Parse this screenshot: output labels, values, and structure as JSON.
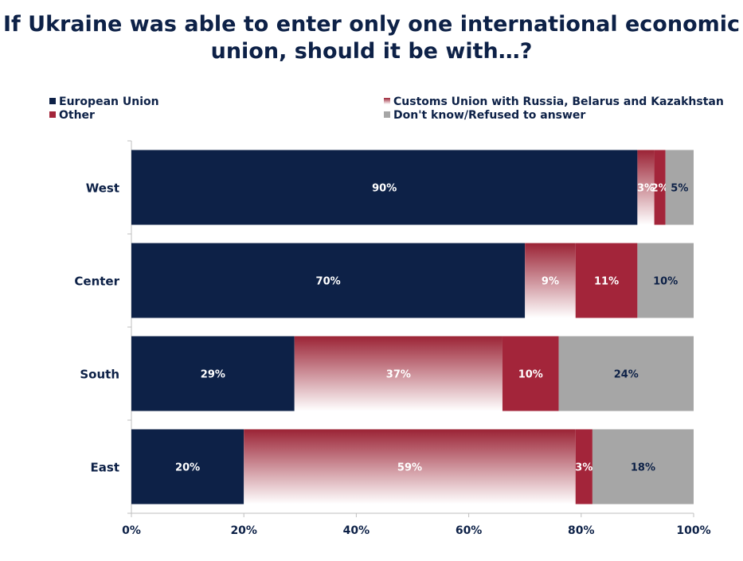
{
  "title_lines": [
    "If Ukraine was able to enter only one international economic",
    "union, should it be with…?"
  ],
  "colors": {
    "eu": "#0d2147",
    "cu_top": "#9b2335",
    "cu_bottom": "#ffffff",
    "other": "#a3253a",
    "dk": "#a6a6a6",
    "axis_text": "#0d2147"
  },
  "legend": [
    {
      "label": "European Union",
      "color": "#0d2147"
    },
    {
      "label": "Customs Union with Russia, Belarus and Kazakhstan",
      "color": "gradient"
    },
    {
      "label": "Other",
      "color": "#a3253a"
    },
    {
      "label": "Don't know/Refused to answer",
      "color": "#a6a6a6"
    }
  ],
  "chart_data": {
    "type": "bar",
    "orientation": "horizontal",
    "stacked": true,
    "title": "If Ukraine was able to enter only one international economic union, should it be with…?",
    "categories": [
      "West",
      "Center",
      "South",
      "East"
    ],
    "series": [
      {
        "name": "European Union",
        "values": [
          90,
          70,
          29,
          20
        ],
        "labels": [
          "90%",
          "70%",
          "29%",
          "20%"
        ]
      },
      {
        "name": "Customs Union with Russia, Belarus and Kazakhstan",
        "values": [
          3,
          9,
          37,
          59
        ],
        "labels": [
          "3%",
          "9%",
          "37%",
          "59%"
        ]
      },
      {
        "name": "Other",
        "values": [
          2,
          11,
          10,
          3
        ],
        "labels": [
          "2%",
          "11%",
          "10%",
          "3%"
        ]
      },
      {
        "name": "Don't know/Refused to answer",
        "values": [
          5,
          10,
          24,
          18
        ],
        "labels": [
          "5%",
          "10%",
          "24%",
          "18%"
        ]
      }
    ],
    "xlim": [
      0,
      100
    ],
    "xticks": [
      "0%",
      "20%",
      "40%",
      "60%",
      "80%",
      "100%"
    ],
    "xlabel": "",
    "ylabel": "",
    "grid": false,
    "legend_position": "top"
  }
}
